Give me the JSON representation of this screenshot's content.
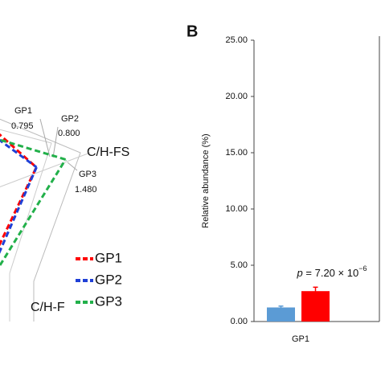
{
  "chart_data": [
    {
      "type": "radar",
      "axes": [
        "C/H-FS",
        "C/H-F"
      ],
      "series": [
        {
          "name": "GP1",
          "color": "#ff0000",
          "values": [
            0.795,
            null
          ],
          "value_labels": [
            "0.795",
            null
          ]
        },
        {
          "name": "GP2",
          "color": "#1f3fd6",
          "values": [
            0.8,
            null
          ],
          "value_labels": [
            "0.800",
            null
          ]
        },
        {
          "name": "GP3",
          "color": "#22b04a",
          "values": [
            1.48,
            null
          ],
          "value_labels": [
            "1.480",
            null
          ]
        }
      ]
    },
    {
      "type": "bar",
      "panel_label": "B",
      "ylabel": "Relative abundance (%)",
      "categories": [
        "GP1"
      ],
      "series": [
        {
          "color": "#5b9bd5",
          "values": [
            1.25
          ],
          "errors": [
            0.12
          ]
        },
        {
          "color": "#ff0000",
          "values": [
            2.7
          ],
          "errors": [
            0.35
          ]
        }
      ],
      "ylim": [
        0,
        25
      ],
      "yticks": [
        {
          "value": 0,
          "label": "0.00"
        },
        {
          "value": 5,
          "label": "5.00"
        },
        {
          "value": 10,
          "label": "10.00"
        },
        {
          "value": 15,
          "label": "15.00"
        },
        {
          "value": 20,
          "label": "20.00"
        },
        {
          "value": 25,
          "label": "25.00"
        }
      ],
      "annotation": {
        "italic": "p",
        "text": " = 7.20 × 10",
        "exponent": "−6"
      }
    }
  ]
}
